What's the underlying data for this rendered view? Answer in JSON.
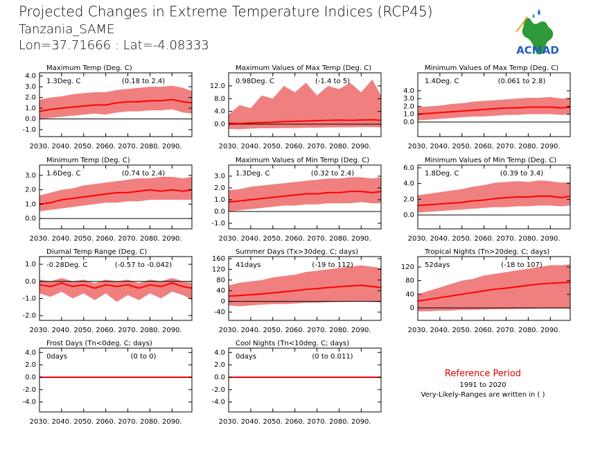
{
  "title": "Projected Changes in Extreme Temperature Indices (RCP45)",
  "station": "Tanzania_SAME",
  "location": "Lon=37.71666 : Lat=-4.08333",
  "logo": "ACMAD",
  "reference": {
    "heading": "Reference Period",
    "period": "1991 to 2020",
    "note": "Very-Likely-Ranges are written in ( )"
  },
  "line_color": "#ff0000",
  "band_color": "#f08080",
  "x": [
    2030,
    2035,
    2040,
    2045,
    2050,
    2055,
    2060,
    2065,
    2070,
    2075,
    2080,
    2085,
    2090,
    2095,
    2099
  ],
  "xlim": [
    2030,
    2099
  ],
  "xticks": [
    {
      "value": 2030,
      "label": "2030."
    },
    {
      "value": 2040,
      "label": "2040."
    },
    {
      "value": 2050,
      "label": "2050."
    },
    {
      "value": 2060,
      "label": "2060."
    },
    {
      "value": 2070,
      "label": "2070."
    },
    {
      "value": 2080,
      "label": "2080."
    },
    {
      "value": 2090,
      "label": "2090."
    }
  ],
  "chart_data": [
    {
      "type": "line",
      "title": "Maximum Temp (Deg. C)",
      "median_text": "1.3Deg. C",
      "range_text": "(0.18 to 2.4)",
      "ylim": [
        -1.65,
        4.3
      ],
      "yticks": [
        {
          "value": -1,
          "label": "-1.0"
        },
        {
          "value": 0,
          "label": "0.0"
        },
        {
          "value": 1,
          "label": "1.0"
        },
        {
          "value": 2,
          "label": "2.0"
        },
        {
          "value": 3,
          "label": "3.0"
        },
        {
          "value": 4,
          "label": "4.0"
        }
      ],
      "values": [
        0.7,
        0.9,
        1.0,
        1.1,
        1.2,
        1.3,
        1.3,
        1.5,
        1.6,
        1.6,
        1.7,
        1.7,
        1.8,
        1.6,
        1.5
      ],
      "low": [
        0.0,
        0.1,
        0.2,
        0.3,
        0.4,
        0.5,
        0.4,
        0.6,
        0.7,
        0.7,
        0.8,
        0.8,
        0.9,
        0.6,
        0.5
      ],
      "high": [
        1.8,
        2.0,
        2.1,
        2.3,
        2.4,
        2.5,
        2.5,
        2.7,
        2.8,
        2.9,
        3.0,
        3.0,
        3.1,
        2.9,
        2.6
      ]
    },
    {
      "type": "line",
      "title": "Maximum Values of Max Temp (Deg. C)",
      "median_text": "0.98Deg. C",
      "range_text": "(-1.4 to 5)",
      "ylim": [
        -3.9,
        16.1
      ],
      "yticks": [
        {
          "value": 0,
          "label": "0.0"
        },
        {
          "value": 4,
          "label": "4.0"
        },
        {
          "value": 8,
          "label": "8.0"
        },
        {
          "value": 12,
          "label": "12.0"
        }
      ],
      "values": [
        0.3,
        0.2,
        0.4,
        0.5,
        0.6,
        0.8,
        0.9,
        1.0,
        1.1,
        1.2,
        1.3,
        1.2,
        1.3,
        1.4,
        1.2
      ],
      "low": [
        -1.5,
        -1.6,
        -1.4,
        -1.3,
        -1.3,
        -1.2,
        -1.2,
        -1.1,
        -1.1,
        -1.0,
        -1.0,
        -1.0,
        -0.9,
        -0.9,
        -1.0
      ],
      "high": [
        3,
        6,
        5,
        9,
        8,
        12,
        10,
        13,
        9,
        12,
        11,
        13,
        10,
        14,
        9
      ]
    },
    {
      "type": "line",
      "title": "Minimum Values of Max Temp (Deg. C)",
      "median_text": "1.4Deg. C",
      "range_text": "(0.061 to 2.8)",
      "ylim": [
        -1.87,
        6.3
      ],
      "yticks": [
        {
          "value": 0,
          "label": "0.0"
        },
        {
          "value": 1,
          "label": "1.0"
        },
        {
          "value": 2,
          "label": "2.0"
        },
        {
          "value": 3,
          "label": "3.0"
        },
        {
          "value": 4,
          "label": "4.0"
        }
      ],
      "values": [
        1.0,
        1.1,
        1.2,
        1.3,
        1.4,
        1.5,
        1.6,
        1.7,
        1.8,
        1.8,
        1.9,
        1.9,
        1.9,
        1.8,
        1.9
      ],
      "low": [
        0.2,
        0.3,
        0.4,
        0.5,
        0.6,
        0.7,
        0.7,
        0.8,
        0.9,
        0.9,
        1.0,
        1.0,
        1.0,
        0.9,
        1.0
      ],
      "high": [
        1.9,
        2.0,
        2.1,
        2.3,
        2.4,
        2.6,
        2.7,
        2.8,
        2.9,
        3.0,
        3.1,
        3.1,
        3.2,
        3.0,
        3.1
      ]
    },
    {
      "type": "line",
      "title": "Minimum Temp (Deg. C)",
      "median_text": "1.6Deg. C",
      "range_text": "(0.74 to 2.4)",
      "ylim": [
        -0.72,
        3.72
      ],
      "yticks": [
        {
          "value": 0,
          "label": "0.0"
        },
        {
          "value": 1,
          "label": "1.0"
        },
        {
          "value": 2,
          "label": "2.0"
        },
        {
          "value": 3,
          "label": "3.0"
        }
      ],
      "values": [
        1.0,
        1.1,
        1.3,
        1.4,
        1.5,
        1.6,
        1.7,
        1.8,
        1.8,
        1.9,
        2.0,
        1.9,
        2.0,
        1.9,
        2.0
      ],
      "low": [
        0.5,
        0.6,
        0.7,
        0.8,
        0.9,
        1.0,
        1.1,
        1.1,
        1.2,
        1.2,
        1.3,
        1.3,
        1.3,
        1.3,
        1.3
      ],
      "high": [
        1.6,
        1.8,
        2.0,
        2.1,
        2.3,
        2.4,
        2.5,
        2.6,
        2.7,
        2.8,
        2.8,
        2.9,
        2.9,
        2.8,
        2.9
      ]
    },
    {
      "type": "line",
      "title": "Maximum Values of Min Temp (Deg. C)",
      "median_text": "1.3Deg. C",
      "range_text": "(0.32 to 2.4)",
      "ylim": [
        -1.47,
        3.94
      ],
      "yticks": [
        {
          "value": -1,
          "label": "-1.0"
        },
        {
          "value": 0,
          "label": "0.0"
        },
        {
          "value": 1,
          "label": "1.0"
        },
        {
          "value": 2,
          "label": "2.0"
        },
        {
          "value": 3,
          "label": "3.0"
        }
      ],
      "values": [
        0.8,
        0.9,
        1.0,
        1.1,
        1.2,
        1.3,
        1.4,
        1.5,
        1.5,
        1.6,
        1.6,
        1.7,
        1.7,
        1.6,
        1.7
      ],
      "low": [
        0.0,
        0.1,
        0.2,
        0.3,
        0.4,
        0.5,
        0.5,
        0.6,
        0.6,
        0.7,
        0.7,
        0.7,
        0.8,
        0.7,
        0.7
      ],
      "high": [
        1.8,
        1.9,
        2.1,
        2.2,
        2.3,
        2.4,
        2.5,
        2.6,
        2.7,
        2.8,
        2.8,
        2.9,
        2.9,
        2.8,
        2.9
      ]
    },
    {
      "type": "line",
      "title": "Minimum Values of Min Temp (Deg. C)",
      "median_text": "1.8Deg. C",
      "range_text": "(0.39 to 3.4)",
      "ylim": [
        -1.76,
        6.35
      ],
      "yticks": [
        {
          "value": 0,
          "label": "0.0"
        },
        {
          "value": 2,
          "label": "2.0"
        },
        {
          "value": 4,
          "label": "4.0"
        },
        {
          "value": 6,
          "label": "6.0"
        }
      ],
      "values": [
        1.2,
        1.3,
        1.4,
        1.5,
        1.6,
        1.8,
        1.9,
        2.1,
        2.2,
        2.3,
        2.3,
        2.4,
        2.4,
        2.2,
        2.4
      ],
      "low": [
        0.3,
        0.4,
        0.5,
        0.6,
        0.7,
        0.8,
        0.9,
        1.0,
        1.0,
        1.1,
        1.1,
        1.2,
        1.2,
        1.1,
        1.2
      ],
      "high": [
        2.5,
        2.7,
        2.9,
        3.1,
        3.3,
        3.6,
        3.8,
        4.1,
        4.2,
        4.3,
        4.2,
        4.4,
        4.3,
        4.1,
        4.2
      ]
    },
    {
      "type": "line",
      "title": "Diurnal Temp Range (Deg. C)",
      "median_text": "-0.28Deg. C",
      "range_text": "(-0.57 to -0.042)",
      "ylim": [
        -2.28,
        1.45
      ],
      "yticks": [
        {
          "value": -2,
          "label": "-2.0"
        },
        {
          "value": -1,
          "label": "-1.0"
        },
        {
          "value": 0,
          "label": "0.0"
        },
        {
          "value": 1,
          "label": "1.0"
        }
      ],
      "values": [
        -0.2,
        -0.3,
        -0.1,
        -0.3,
        -0.2,
        -0.4,
        -0.2,
        -0.3,
        -0.2,
        -0.4,
        -0.2,
        -0.3,
        -0.1,
        -0.3,
        -0.4
      ],
      "low": [
        -0.7,
        -0.9,
        -0.6,
        -1.0,
        -0.7,
        -1.1,
        -0.7,
        -1.2,
        -0.8,
        -1.1,
        -0.7,
        -1.0,
        -0.6,
        -0.8,
        -1.1
      ],
      "high": [
        0.1,
        0.0,
        0.2,
        0.0,
        0.1,
        -0.1,
        0.1,
        0.0,
        0.1,
        -0.1,
        0.1,
        0.0,
        0.2,
        0.0,
        -0.1
      ]
    },
    {
      "type": "line",
      "title": "Summer Days (Tx>30deg. C; days)",
      "median_text": "41days",
      "range_text": "(-19 to 112)",
      "ylim": [
        -71,
        167.8
      ],
      "yticks": [
        -40,
        0,
        40,
        80,
        120,
        160
      ],
      "values": [
        20,
        22,
        25,
        28,
        32,
        36,
        40,
        45,
        48,
        52,
        55,
        58,
        60,
        56,
        52
      ],
      "low": [
        -15,
        -18,
        -15,
        -12,
        -10,
        -10,
        -8,
        -5,
        -5,
        -3,
        -2,
        -1,
        0,
        -2,
        -3
      ],
      "high": [
        60,
        70,
        75,
        80,
        90,
        95,
        100,
        110,
        115,
        120,
        125,
        130,
        135,
        130,
        125
      ]
    },
    {
      "type": "line",
      "title": "Tropical Nights (Tn>20deg. C; days)",
      "median_text": "52days",
      "range_text": "(-18 to 107)",
      "ylim": [
        -36.7,
        150.5
      ],
      "yticks": [
        0,
        40,
        80,
        120
      ],
      "values": [
        20,
        25,
        30,
        35,
        40,
        45,
        50,
        55,
        58,
        62,
        66,
        70,
        72,
        74,
        75
      ],
      "low": [
        -10,
        -10,
        -8,
        -8,
        -6,
        -6,
        -5,
        -4,
        -4,
        -3,
        -3,
        -2,
        -2,
        -2,
        -2
      ],
      "high": [
        40,
        50,
        60,
        70,
        80,
        85,
        95,
        100,
        105,
        110,
        115,
        120,
        125,
        125,
        128
      ]
    },
    {
      "type": "line",
      "title": "Frost Days (Tn<0deg. C; days)",
      "median_text": "0days",
      "range_text": "(0 to 0)",
      "ylim": [
        -5.6,
        4.7
      ],
      "yticks": [
        {
          "value": -4,
          "label": "-4.0"
        },
        {
          "value": -2,
          "label": "-2.0"
        },
        {
          "value": 0,
          "label": "0.0"
        },
        {
          "value": 2,
          "label": "2.0"
        },
        {
          "value": 4,
          "label": "4.0"
        }
      ],
      "values": [
        0,
        0,
        0,
        0,
        0,
        0,
        0,
        0,
        0,
        0,
        0,
        0,
        0,
        0,
        0
      ],
      "low": [
        0,
        0,
        0,
        0,
        0,
        0,
        0,
        0,
        0,
        0,
        0,
        0,
        0,
        0,
        0
      ],
      "high": [
        0,
        0,
        0,
        0,
        0,
        0,
        0,
        0,
        0,
        0,
        0,
        0,
        0,
        0,
        0
      ]
    },
    {
      "type": "line",
      "title": "Cool Nights (Tn<10deg. C; days)",
      "median_text": "0days",
      "range_text": "(0 to 0.011)",
      "ylim": [
        -5.6,
        4.7
      ],
      "yticks": [
        {
          "value": -4,
          "label": "-4.0"
        },
        {
          "value": -2,
          "label": "-2.0"
        },
        {
          "value": 0,
          "label": "0.0"
        },
        {
          "value": 2,
          "label": "2.0"
        },
        {
          "value": 4,
          "label": "4.0"
        }
      ],
      "values": [
        0,
        0,
        0,
        0,
        0,
        0,
        0,
        0,
        0,
        0,
        0,
        0,
        0,
        0,
        0
      ],
      "low": [
        0,
        0,
        0,
        0,
        0,
        0,
        0,
        0,
        0,
        0,
        0,
        0,
        0,
        0,
        0
      ],
      "high": [
        0,
        0,
        0,
        0,
        0,
        0,
        0,
        0,
        0,
        0,
        0,
        0,
        0,
        0,
        0
      ]
    }
  ]
}
